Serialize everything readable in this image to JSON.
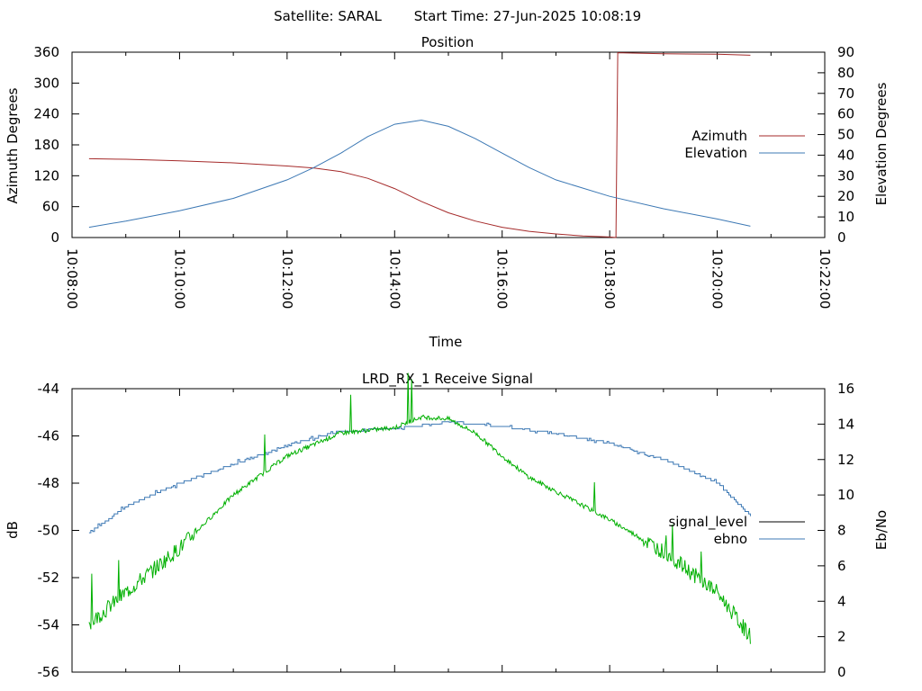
{
  "header": {
    "satellite_label": "Satellite: SARAL",
    "start_time_label": "Start Time: 27-Jun-2025 10:08:19"
  },
  "colors": {
    "azimuth": "#a52a2a",
    "elevation": "#3c78b4",
    "signal_level": "#000000",
    "ebno_curve": "#00b000",
    "legend_ebno": "#3c78b4",
    "axis": "#000000",
    "background": "#ffffff"
  },
  "chart_data": [
    {
      "type": "line",
      "title": "Position",
      "xlabel": "Time",
      "ylabel": "Azimuth Degrees",
      "y2label": "Elevation Degrees",
      "xlim": [
        "10:08:00",
        "10:22:00"
      ],
      "ylim": [
        0,
        360
      ],
      "y2lim": [
        0,
        90
      ],
      "x_ticks": [
        "10:08:00",
        "10:10:00",
        "10:12:00",
        "10:14:00",
        "10:16:00",
        "10:18:00",
        "10:20:00",
        "10:22:00"
      ],
      "y_ticks": [
        0,
        60,
        120,
        180,
        240,
        300,
        360
      ],
      "y2_ticks": [
        0,
        10,
        20,
        30,
        40,
        50,
        60,
        70,
        80,
        90
      ],
      "legend_position": "right",
      "grid": false,
      "series": [
        {
          "name": "Azimuth",
          "axis": "y",
          "x": [
            "10:08:19",
            "10:09:00",
            "10:10:00",
            "10:11:00",
            "10:12:00",
            "10:12:30",
            "10:13:00",
            "10:13:30",
            "10:14:00",
            "10:14:30",
            "10:15:00",
            "10:15:30",
            "10:16:00",
            "10:16:30",
            "10:17:00",
            "10:17:30",
            "10:18:00",
            "10:18:07",
            "10:18:08",
            "10:18:09",
            "10:19:00",
            "10:20:00",
            "10:20:37"
          ],
          "values": [
            153,
            152,
            149,
            145,
            139,
            135,
            128,
            115,
            95,
            70,
            48,
            32,
            20,
            12,
            7,
            3,
            1,
            0,
            180,
            359,
            357,
            356,
            354
          ]
        },
        {
          "name": "Elevation",
          "axis": "y2",
          "x": [
            "10:08:19",
            "10:09:00",
            "10:10:00",
            "10:11:00",
            "10:12:00",
            "10:12:30",
            "10:13:00",
            "10:13:30",
            "10:14:00",
            "10:14:30",
            "10:15:00",
            "10:15:30",
            "10:16:00",
            "10:16:30",
            "10:17:00",
            "10:18:00",
            "10:19:00",
            "10:20:00",
            "10:20:37"
          ],
          "values": [
            5,
            8,
            13,
            19,
            28,
            34,
            41,
            49,
            55,
            57,
            54,
            48,
            41,
            34,
            28,
            20,
            14,
            9,
            5.5
          ]
        }
      ]
    },
    {
      "type": "line",
      "title": "LRD_RX_1 Receive Signal",
      "xlabel": "",
      "ylabel": "dB",
      "y2label": "Eb/No",
      "xlim": [
        "10:08:00",
        "10:22:00"
      ],
      "ylim": [
        -56,
        -44
      ],
      "y2lim": [
        0,
        16
      ],
      "y_ticks": [
        -56,
        -54,
        -52,
        -50,
        -48,
        -46,
        -44
      ],
      "y2_ticks": [
        0,
        2,
        4,
        6,
        8,
        10,
        12,
        14,
        16
      ],
      "legend_position": "right",
      "grid": false,
      "series": [
        {
          "name": "signal_level",
          "axis": "y",
          "x": [
            "10:08:19",
            "10:09:00",
            "10:10:00",
            "10:11:00",
            "10:12:00",
            "10:13:00",
            "10:14:00",
            "10:15:00",
            "10:16:00",
            "10:17:00",
            "10:18:00",
            "10:19:00",
            "10:20:00",
            "10:20:37"
          ],
          "values": [
            -50.1,
            -49.0,
            -48.0,
            -47.2,
            -46.4,
            -45.8,
            -45.7,
            -45.4,
            -45.6,
            -45.9,
            -46.3,
            -47.0,
            -48.0,
            -49.4
          ]
        },
        {
          "name": "ebno",
          "axis": "y2",
          "x": [
            "10:08:19",
            "10:09:00",
            "10:10:00",
            "10:11:00",
            "10:12:00",
            "10:13:00",
            "10:14:00",
            "10:14:30",
            "10:15:00",
            "10:15:30",
            "10:16:00",
            "10:16:30",
            "10:17:00",
            "10:18:00",
            "10:19:00",
            "10:20:00",
            "10:20:37"
          ],
          "values": [
            2.7,
            4.5,
            7.0,
            10.0,
            12.2,
            13.5,
            13.8,
            14.4,
            14.3,
            13.5,
            12.2,
            11.0,
            10.2,
            8.6,
            6.8,
            4.5,
            2.0
          ]
        }
      ]
    }
  ]
}
